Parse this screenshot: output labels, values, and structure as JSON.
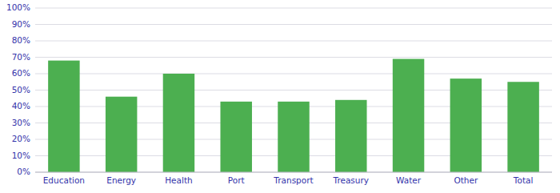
{
  "chart_data": {
    "type": "bar",
    "categories": [
      "Education",
      "Energy",
      "Health",
      "Port",
      "Transport",
      "Treasury",
      "Water",
      "Other",
      "Total"
    ],
    "values": [
      0.68,
      0.46,
      0.6,
      0.43,
      0.43,
      0.44,
      0.69,
      0.57,
      0.55
    ],
    "color": "#4CAF50",
    "ylim": [
      0,
      1.0
    ],
    "yticks": [
      {
        "value": 0.0,
        "label": "0%"
      },
      {
        "value": 0.1,
        "label": "10%"
      },
      {
        "value": 0.2,
        "label": "20%"
      },
      {
        "value": 0.3,
        "label": "30%"
      },
      {
        "value": 0.4,
        "label": "40%"
      },
      {
        "value": 0.5,
        "label": "50%"
      },
      {
        "value": 0.6,
        "label": "60%"
      },
      {
        "value": 0.7,
        "label": "70%"
      },
      {
        "value": 0.8,
        "label": "80%"
      },
      {
        "value": 0.9,
        "label": "90%"
      },
      {
        "value": 1.0,
        "label": "100%"
      }
    ],
    "grid": true
  }
}
